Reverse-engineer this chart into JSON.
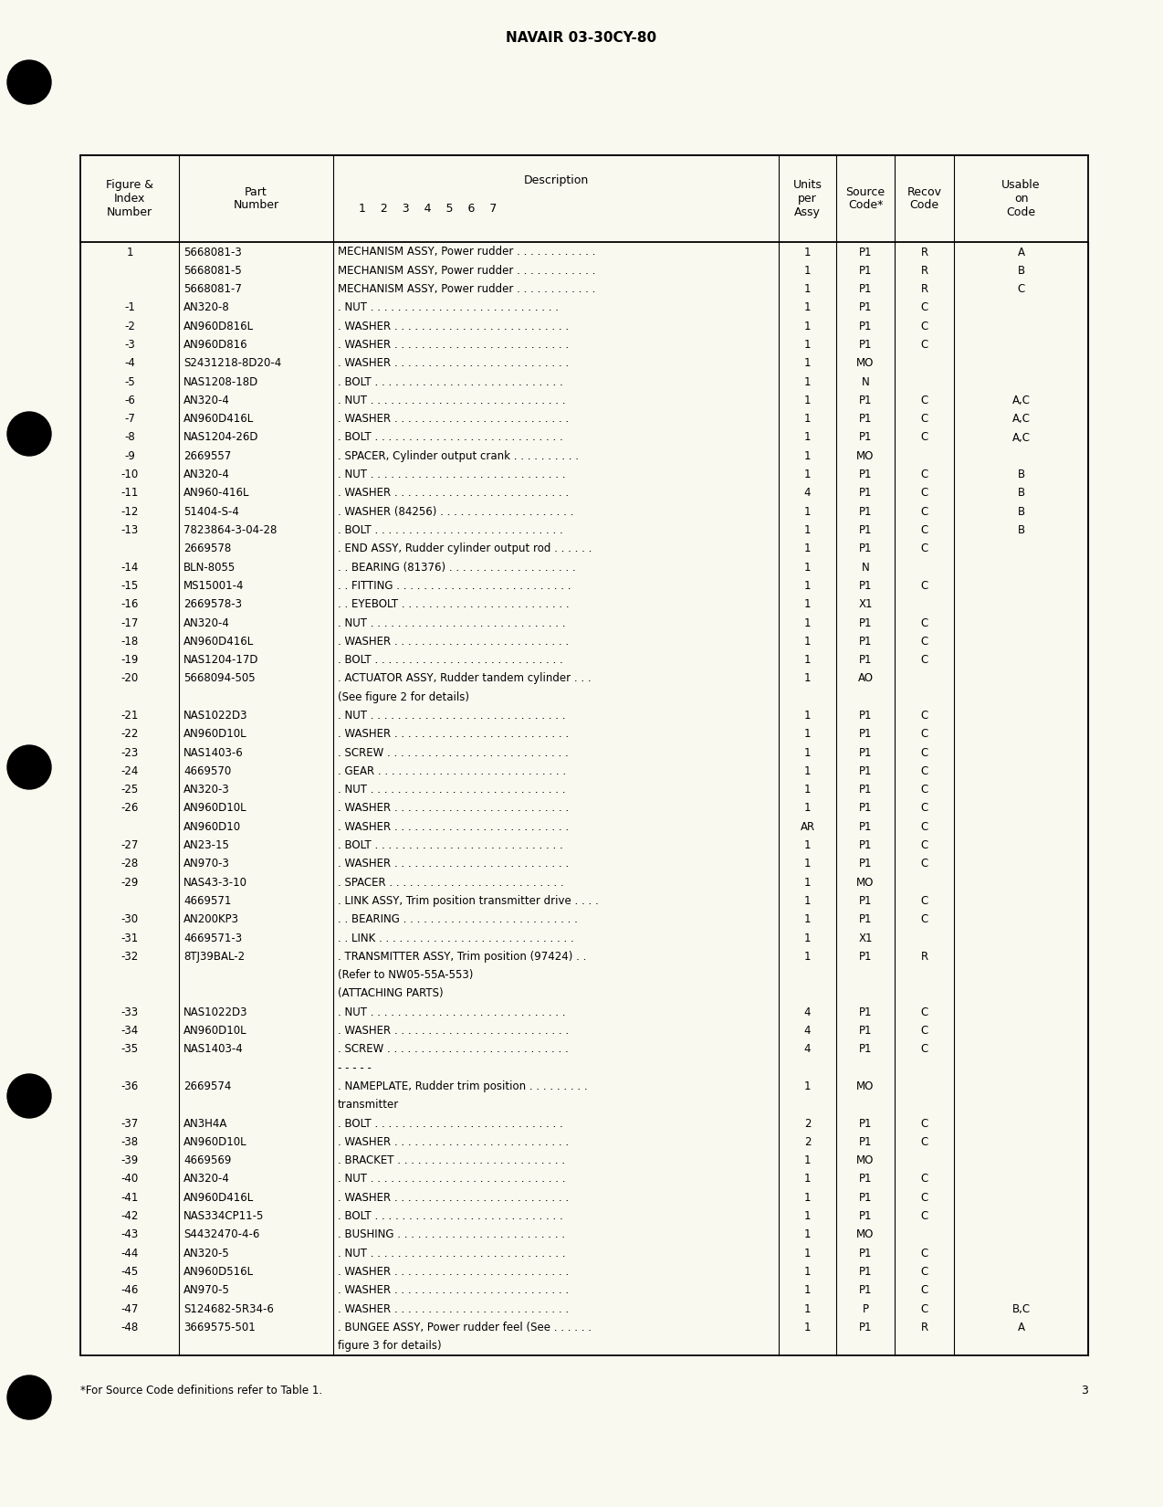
{
  "page_title": "NAVAIR 03-30CY-80",
  "page_number": "3",
  "footnote": "*For Source Code definitions refer to Table 1.",
  "bg_color": "#faf9f0",
  "rows": [
    {
      "fig": "1",
      "part": "5668081-3",
      "indent": 0,
      "desc": "MECHANISM ASSY, Power rudder . . . . . . . . . . . .",
      "qty": "1",
      "src": "P1",
      "rec": "R",
      "use": "A"
    },
    {
      "fig": "",
      "part": "5668081-5",
      "indent": 0,
      "desc": "MECHANISM ASSY, Power rudder . . . . . . . . . . . .",
      "qty": "1",
      "src": "P1",
      "rec": "R",
      "use": "B"
    },
    {
      "fig": "",
      "part": "5668081-7",
      "indent": 0,
      "desc": "MECHANISM ASSY, Power rudder . . . . . . . . . . . .",
      "qty": "1",
      "src": "P1",
      "rec": "R",
      "use": "C"
    },
    {
      "fig": "-1",
      "part": "AN320-8",
      "indent": 1,
      "desc": ". NUT . . . . . . . . . . . . . . . . . . . . . . . . . . . .",
      "qty": "1",
      "src": "P1",
      "rec": "C",
      "use": ""
    },
    {
      "fig": "-2",
      "part": "AN960D816L",
      "indent": 1,
      "desc": ". WASHER . . . . . . . . . . . . . . . . . . . . . . . . . .",
      "qty": "1",
      "src": "P1",
      "rec": "C",
      "use": ""
    },
    {
      "fig": "-3",
      "part": "AN960D816",
      "indent": 1,
      "desc": ". WASHER . . . . . . . . . . . . . . . . . . . . . . . . . .",
      "qty": "1",
      "src": "P1",
      "rec": "C",
      "use": ""
    },
    {
      "fig": "-4",
      "part": "S2431218-8D20-4",
      "indent": 1,
      "desc": ". WASHER . . . . . . . . . . . . . . . . . . . . . . . . . .",
      "qty": "1",
      "src": "MO",
      "rec": "",
      "use": ""
    },
    {
      "fig": "-5",
      "part": "NAS1208-18D",
      "indent": 1,
      "desc": ". BOLT . . . . . . . . . . . . . . . . . . . . . . . . . . . .",
      "qty": "1",
      "src": "N",
      "rec": "",
      "use": ""
    },
    {
      "fig": "-6",
      "part": "AN320-4",
      "indent": 1,
      "desc": ". NUT . . . . . . . . . . . . . . . . . . . . . . . . . . . . .",
      "qty": "1",
      "src": "P1",
      "rec": "C",
      "use": "A,C"
    },
    {
      "fig": "-7",
      "part": "AN960D416L",
      "indent": 1,
      "desc": ". WASHER . . . . . . . . . . . . . . . . . . . . . . . . . .",
      "qty": "1",
      "src": "P1",
      "rec": "C",
      "use": "A,C"
    },
    {
      "fig": "-8",
      "part": "NAS1204-26D",
      "indent": 1,
      "desc": ". BOLT . . . . . . . . . . . . . . . . . . . . . . . . . . . .",
      "qty": "1",
      "src": "P1",
      "rec": "C",
      "use": "A,C"
    },
    {
      "fig": "-9",
      "part": "2669557",
      "indent": 1,
      "desc": ". SPACER, Cylinder output crank . . . . . . . . . .",
      "qty": "1",
      "src": "MO",
      "rec": "",
      "use": ""
    },
    {
      "fig": "-10",
      "part": "AN320-4",
      "indent": 1,
      "desc": ". NUT . . . . . . . . . . . . . . . . . . . . . . . . . . . . .",
      "qty": "1",
      "src": "P1",
      "rec": "C",
      "use": "B"
    },
    {
      "fig": "-11",
      "part": "AN960-416L",
      "indent": 1,
      "desc": ". WASHER . . . . . . . . . . . . . . . . . . . . . . . . . .",
      "qty": "4",
      "src": "P1",
      "rec": "C",
      "use": "B"
    },
    {
      "fig": "-12",
      "part": "51404-S-4",
      "indent": 1,
      "desc": ". WASHER (84256) . . . . . . . . . . . . . . . . . . . .",
      "qty": "1",
      "src": "P1",
      "rec": "C",
      "use": "B"
    },
    {
      "fig": "-13",
      "part": "7823864-3-04-28",
      "indent": 1,
      "desc": ". BOLT . . . . . . . . . . . . . . . . . . . . . . . . . . . .",
      "qty": "1",
      "src": "P1",
      "rec": "C",
      "use": "B"
    },
    {
      "fig": "",
      "part": "2669578",
      "indent": 1,
      "desc": ". END ASSY, Rudder cylinder output rod . . . . . .",
      "qty": "1",
      "src": "P1",
      "rec": "C",
      "use": ""
    },
    {
      "fig": "-14",
      "part": "BLN-8055",
      "indent": 2,
      "desc": ". . BEARING (81376) . . . . . . . . . . . . . . . . . . .",
      "qty": "1",
      "src": "N",
      "rec": "",
      "use": ""
    },
    {
      "fig": "-15",
      "part": "MS15001-4",
      "indent": 2,
      "desc": ". . FITTING . . . . . . . . . . . . . . . . . . . . . . . . . .",
      "qty": "1",
      "src": "P1",
      "rec": "C",
      "use": ""
    },
    {
      "fig": "-16",
      "part": "2669578-3",
      "indent": 2,
      "desc": ". . EYEBOLT . . . . . . . . . . . . . . . . . . . . . . . . .",
      "qty": "1",
      "src": "X1",
      "rec": "",
      "use": ""
    },
    {
      "fig": "-17",
      "part": "AN320-4",
      "indent": 1,
      "desc": ". NUT . . . . . . . . . . . . . . . . . . . . . . . . . . . . .",
      "qty": "1",
      "src": "P1",
      "rec": "C",
      "use": ""
    },
    {
      "fig": "-18",
      "part": "AN960D416L",
      "indent": 1,
      "desc": ". WASHER . . . . . . . . . . . . . . . . . . . . . . . . . .",
      "qty": "1",
      "src": "P1",
      "rec": "C",
      "use": ""
    },
    {
      "fig": "-19",
      "part": "NAS1204-17D",
      "indent": 1,
      "desc": ". BOLT . . . . . . . . . . . . . . . . . . . . . . . . . . . .",
      "qty": "1",
      "src": "P1",
      "rec": "C",
      "use": ""
    },
    {
      "fig": "-20",
      "part": "5668094-505",
      "indent": 1,
      "desc": ". ACTUATOR ASSY, Rudder tandem cylinder . . .",
      "qty": "1",
      "src": "AO",
      "rec": "",
      "use": ""
    },
    {
      "fig": "",
      "part": "",
      "indent": 3,
      "desc": "(See figure 2 for details)",
      "qty": "",
      "src": "",
      "rec": "",
      "use": ""
    },
    {
      "fig": "-21",
      "part": "NAS1022D3",
      "indent": 1,
      "desc": ". NUT . . . . . . . . . . . . . . . . . . . . . . . . . . . . .",
      "qty": "1",
      "src": "P1",
      "rec": "C",
      "use": ""
    },
    {
      "fig": "-22",
      "part": "AN960D10L",
      "indent": 1,
      "desc": ". WASHER . . . . . . . . . . . . . . . . . . . . . . . . . .",
      "qty": "1",
      "src": "P1",
      "rec": "C",
      "use": ""
    },
    {
      "fig": "-23",
      "part": "NAS1403-6",
      "indent": 1,
      "desc": ". SCREW . . . . . . . . . . . . . . . . . . . . . . . . . . .",
      "qty": "1",
      "src": "P1",
      "rec": "C",
      "use": ""
    },
    {
      "fig": "-24",
      "part": "4669570",
      "indent": 1,
      "desc": ". GEAR . . . . . . . . . . . . . . . . . . . . . . . . . . . .",
      "qty": "1",
      "src": "P1",
      "rec": "C",
      "use": ""
    },
    {
      "fig": "-25",
      "part": "AN320-3",
      "indent": 1,
      "desc": ". NUT . . . . . . . . . . . . . . . . . . . . . . . . . . . . .",
      "qty": "1",
      "src": "P1",
      "rec": "C",
      "use": ""
    },
    {
      "fig": "-26",
      "part": "AN960D10L",
      "indent": 1,
      "desc": ". WASHER . . . . . . . . . . . . . . . . . . . . . . . . . .",
      "qty": "1",
      "src": "P1",
      "rec": "C",
      "use": ""
    },
    {
      "fig": "",
      "part": "AN960D10",
      "indent": 1,
      "desc": ". WASHER . . . . . . . . . . . . . . . . . . . . . . . . . .",
      "qty": "AR",
      "src": "P1",
      "rec": "C",
      "use": ""
    },
    {
      "fig": "-27",
      "part": "AN23-15",
      "indent": 1,
      "desc": ". BOLT . . . . . . . . . . . . . . . . . . . . . . . . . . . .",
      "qty": "1",
      "src": "P1",
      "rec": "C",
      "use": ""
    },
    {
      "fig": "-28",
      "part": "AN970-3",
      "indent": 1,
      "desc": ". WASHER . . . . . . . . . . . . . . . . . . . . . . . . . .",
      "qty": "1",
      "src": "P1",
      "rec": "C",
      "use": ""
    },
    {
      "fig": "-29",
      "part": "NAS43-3-10",
      "indent": 1,
      "desc": ". SPACER . . . . . . . . . . . . . . . . . . . . . . . . . .",
      "qty": "1",
      "src": "MO",
      "rec": "",
      "use": ""
    },
    {
      "fig": "",
      "part": "4669571",
      "indent": 1,
      "desc": ". LINK ASSY, Trim position transmitter drive . . . .",
      "qty": "1",
      "src": "P1",
      "rec": "C",
      "use": ""
    },
    {
      "fig": "-30",
      "part": "AN200KP3",
      "indent": 2,
      "desc": ". . BEARING . . . . . . . . . . . . . . . . . . . . . . . . . .",
      "qty": "1",
      "src": "P1",
      "rec": "C",
      "use": ""
    },
    {
      "fig": "-31",
      "part": "4669571-3",
      "indent": 2,
      "desc": ". . LINK . . . . . . . . . . . . . . . . . . . . . . . . . . . . .",
      "qty": "1",
      "src": "X1",
      "rec": "",
      "use": ""
    },
    {
      "fig": "-32",
      "part": "8TJ39BAL-2",
      "indent": 1,
      "desc": ". TRANSMITTER ASSY, Trim position (97424) . .",
      "qty": "1",
      "src": "P1",
      "rec": "R",
      "use": ""
    },
    {
      "fig": "",
      "part": "",
      "indent": 3,
      "desc": "(Refer to NW05-55A-553)",
      "qty": "",
      "src": "",
      "rec": "",
      "use": ""
    },
    {
      "fig": "",
      "part": "",
      "indent": 3,
      "desc": "(ATTACHING PARTS)",
      "qty": "",
      "src": "",
      "rec": "",
      "use": ""
    },
    {
      "fig": "-33",
      "part": "NAS1022D3",
      "indent": 1,
      "desc": ". NUT . . . . . . . . . . . . . . . . . . . . . . . . . . . . .",
      "qty": "4",
      "src": "P1",
      "rec": "C",
      "use": ""
    },
    {
      "fig": "-34",
      "part": "AN960D10L",
      "indent": 1,
      "desc": ". WASHER . . . . . . . . . . . . . . . . . . . . . . . . . .",
      "qty": "4",
      "src": "P1",
      "rec": "C",
      "use": ""
    },
    {
      "fig": "-35",
      "part": "NAS1403-4",
      "indent": 1,
      "desc": ". SCREW . . . . . . . . . . . . . . . . . . . . . . . . . . .",
      "qty": "4",
      "src": "P1",
      "rec": "C",
      "use": ""
    },
    {
      "fig": "",
      "part": "",
      "indent": 0,
      "desc": "- - - - -",
      "qty": "",
      "src": "",
      "rec": "",
      "use": ""
    },
    {
      "fig": "-36",
      "part": "2669574",
      "indent": 1,
      "desc": ". NAMEPLATE, Rudder trim position . . . . . . . . .",
      "qty": "1",
      "src": "MO",
      "rec": "",
      "use": ""
    },
    {
      "fig": "",
      "part": "",
      "indent": 3,
      "desc": "transmitter",
      "qty": "",
      "src": "",
      "rec": "",
      "use": ""
    },
    {
      "fig": "-37",
      "part": "AN3H4A",
      "indent": 1,
      "desc": ". BOLT . . . . . . . . . . . . . . . . . . . . . . . . . . . .",
      "qty": "2",
      "src": "P1",
      "rec": "C",
      "use": ""
    },
    {
      "fig": "-38",
      "part": "AN960D10L",
      "indent": 1,
      "desc": ". WASHER . . . . . . . . . . . . . . . . . . . . . . . . . .",
      "qty": "2",
      "src": "P1",
      "rec": "C",
      "use": ""
    },
    {
      "fig": "-39",
      "part": "4669569",
      "indent": 1,
      "desc": ". BRACKET . . . . . . . . . . . . . . . . . . . . . . . . .",
      "qty": "1",
      "src": "MO",
      "rec": "",
      "use": ""
    },
    {
      "fig": "-40",
      "part": "AN320-4",
      "indent": 1,
      "desc": ". NUT . . . . . . . . . . . . . . . . . . . . . . . . . . . . .",
      "qty": "1",
      "src": "P1",
      "rec": "C",
      "use": ""
    },
    {
      "fig": "-41",
      "part": "AN960D416L",
      "indent": 1,
      "desc": ". WASHER . . . . . . . . . . . . . . . . . . . . . . . . . .",
      "qty": "1",
      "src": "P1",
      "rec": "C",
      "use": ""
    },
    {
      "fig": "-42",
      "part": "NAS334CP11-5",
      "indent": 1,
      "desc": ". BOLT . . . . . . . . . . . . . . . . . . . . . . . . . . . .",
      "qty": "1",
      "src": "P1",
      "rec": "C",
      "use": ""
    },
    {
      "fig": "-43",
      "part": "S4432470-4-6",
      "indent": 1,
      "desc": ". BUSHING . . . . . . . . . . . . . . . . . . . . . . . . .",
      "qty": "1",
      "src": "MO",
      "rec": "",
      "use": ""
    },
    {
      "fig": "-44",
      "part": "AN320-5",
      "indent": 1,
      "desc": ". NUT . . . . . . . . . . . . . . . . . . . . . . . . . . . . .",
      "qty": "1",
      "src": "P1",
      "rec": "C",
      "use": ""
    },
    {
      "fig": "-45",
      "part": "AN960D516L",
      "indent": 1,
      "desc": ". WASHER . . . . . . . . . . . . . . . . . . . . . . . . . .",
      "qty": "1",
      "src": "P1",
      "rec": "C",
      "use": ""
    },
    {
      "fig": "-46",
      "part": "AN970-5",
      "indent": 1,
      "desc": ". WASHER . . . . . . . . . . . . . . . . . . . . . . . . . .",
      "qty": "1",
      "src": "P1",
      "rec": "C",
      "use": ""
    },
    {
      "fig": "-47",
      "part": "S124682-5R34-6",
      "indent": 1,
      "desc": ". WASHER . . . . . . . . . . . . . . . . . . . . . . . . . .",
      "qty": "1",
      "src": "P",
      "rec": "C",
      "use": "B,C"
    },
    {
      "fig": "-48",
      "part": "3669575-501",
      "indent": 1,
      "desc": ". BUNGEE ASSY, Power rudder feel (See . . . . . .",
      "qty": "1",
      "src": "P1",
      "rec": "R",
      "use": "A"
    },
    {
      "fig": "",
      "part": "",
      "indent": 3,
      "desc": "figure 3 for details)",
      "qty": "",
      "src": "",
      "rec": "",
      "use": ""
    }
  ]
}
